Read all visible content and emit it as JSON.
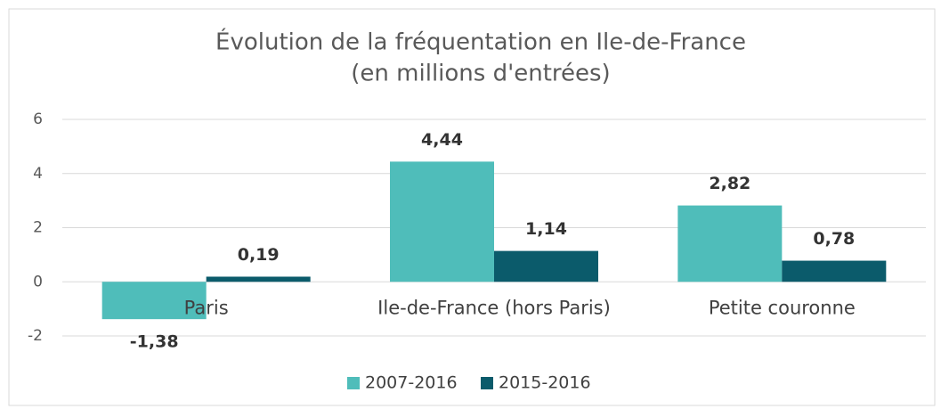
{
  "chart_data": {
    "type": "bar",
    "title": "Évolution de la fréquentation en Ile-de-France",
    "subtitle": "(en millions d'entrées)",
    "categories": [
      "Paris",
      "Ile-de-France (hors Paris)",
      "Petite couronne"
    ],
    "series": [
      {
        "name": "2007-2016",
        "color": "#4fbdba",
        "values": [
          -1.38,
          4.44,
          2.82
        ],
        "value_labels": [
          "-1,38",
          "4,44",
          "2,82"
        ]
      },
      {
        "name": "2015-2016",
        "color": "#0b5b6b",
        "values": [
          0.19,
          1.14,
          0.78
        ],
        "value_labels": [
          "0,19",
          "1,14",
          "0,78"
        ]
      }
    ],
    "ylim": [
      -2,
      6
    ],
    "yticks": [
      -2,
      0,
      2,
      4,
      6
    ],
    "grid": true,
    "legend": "bottom"
  }
}
